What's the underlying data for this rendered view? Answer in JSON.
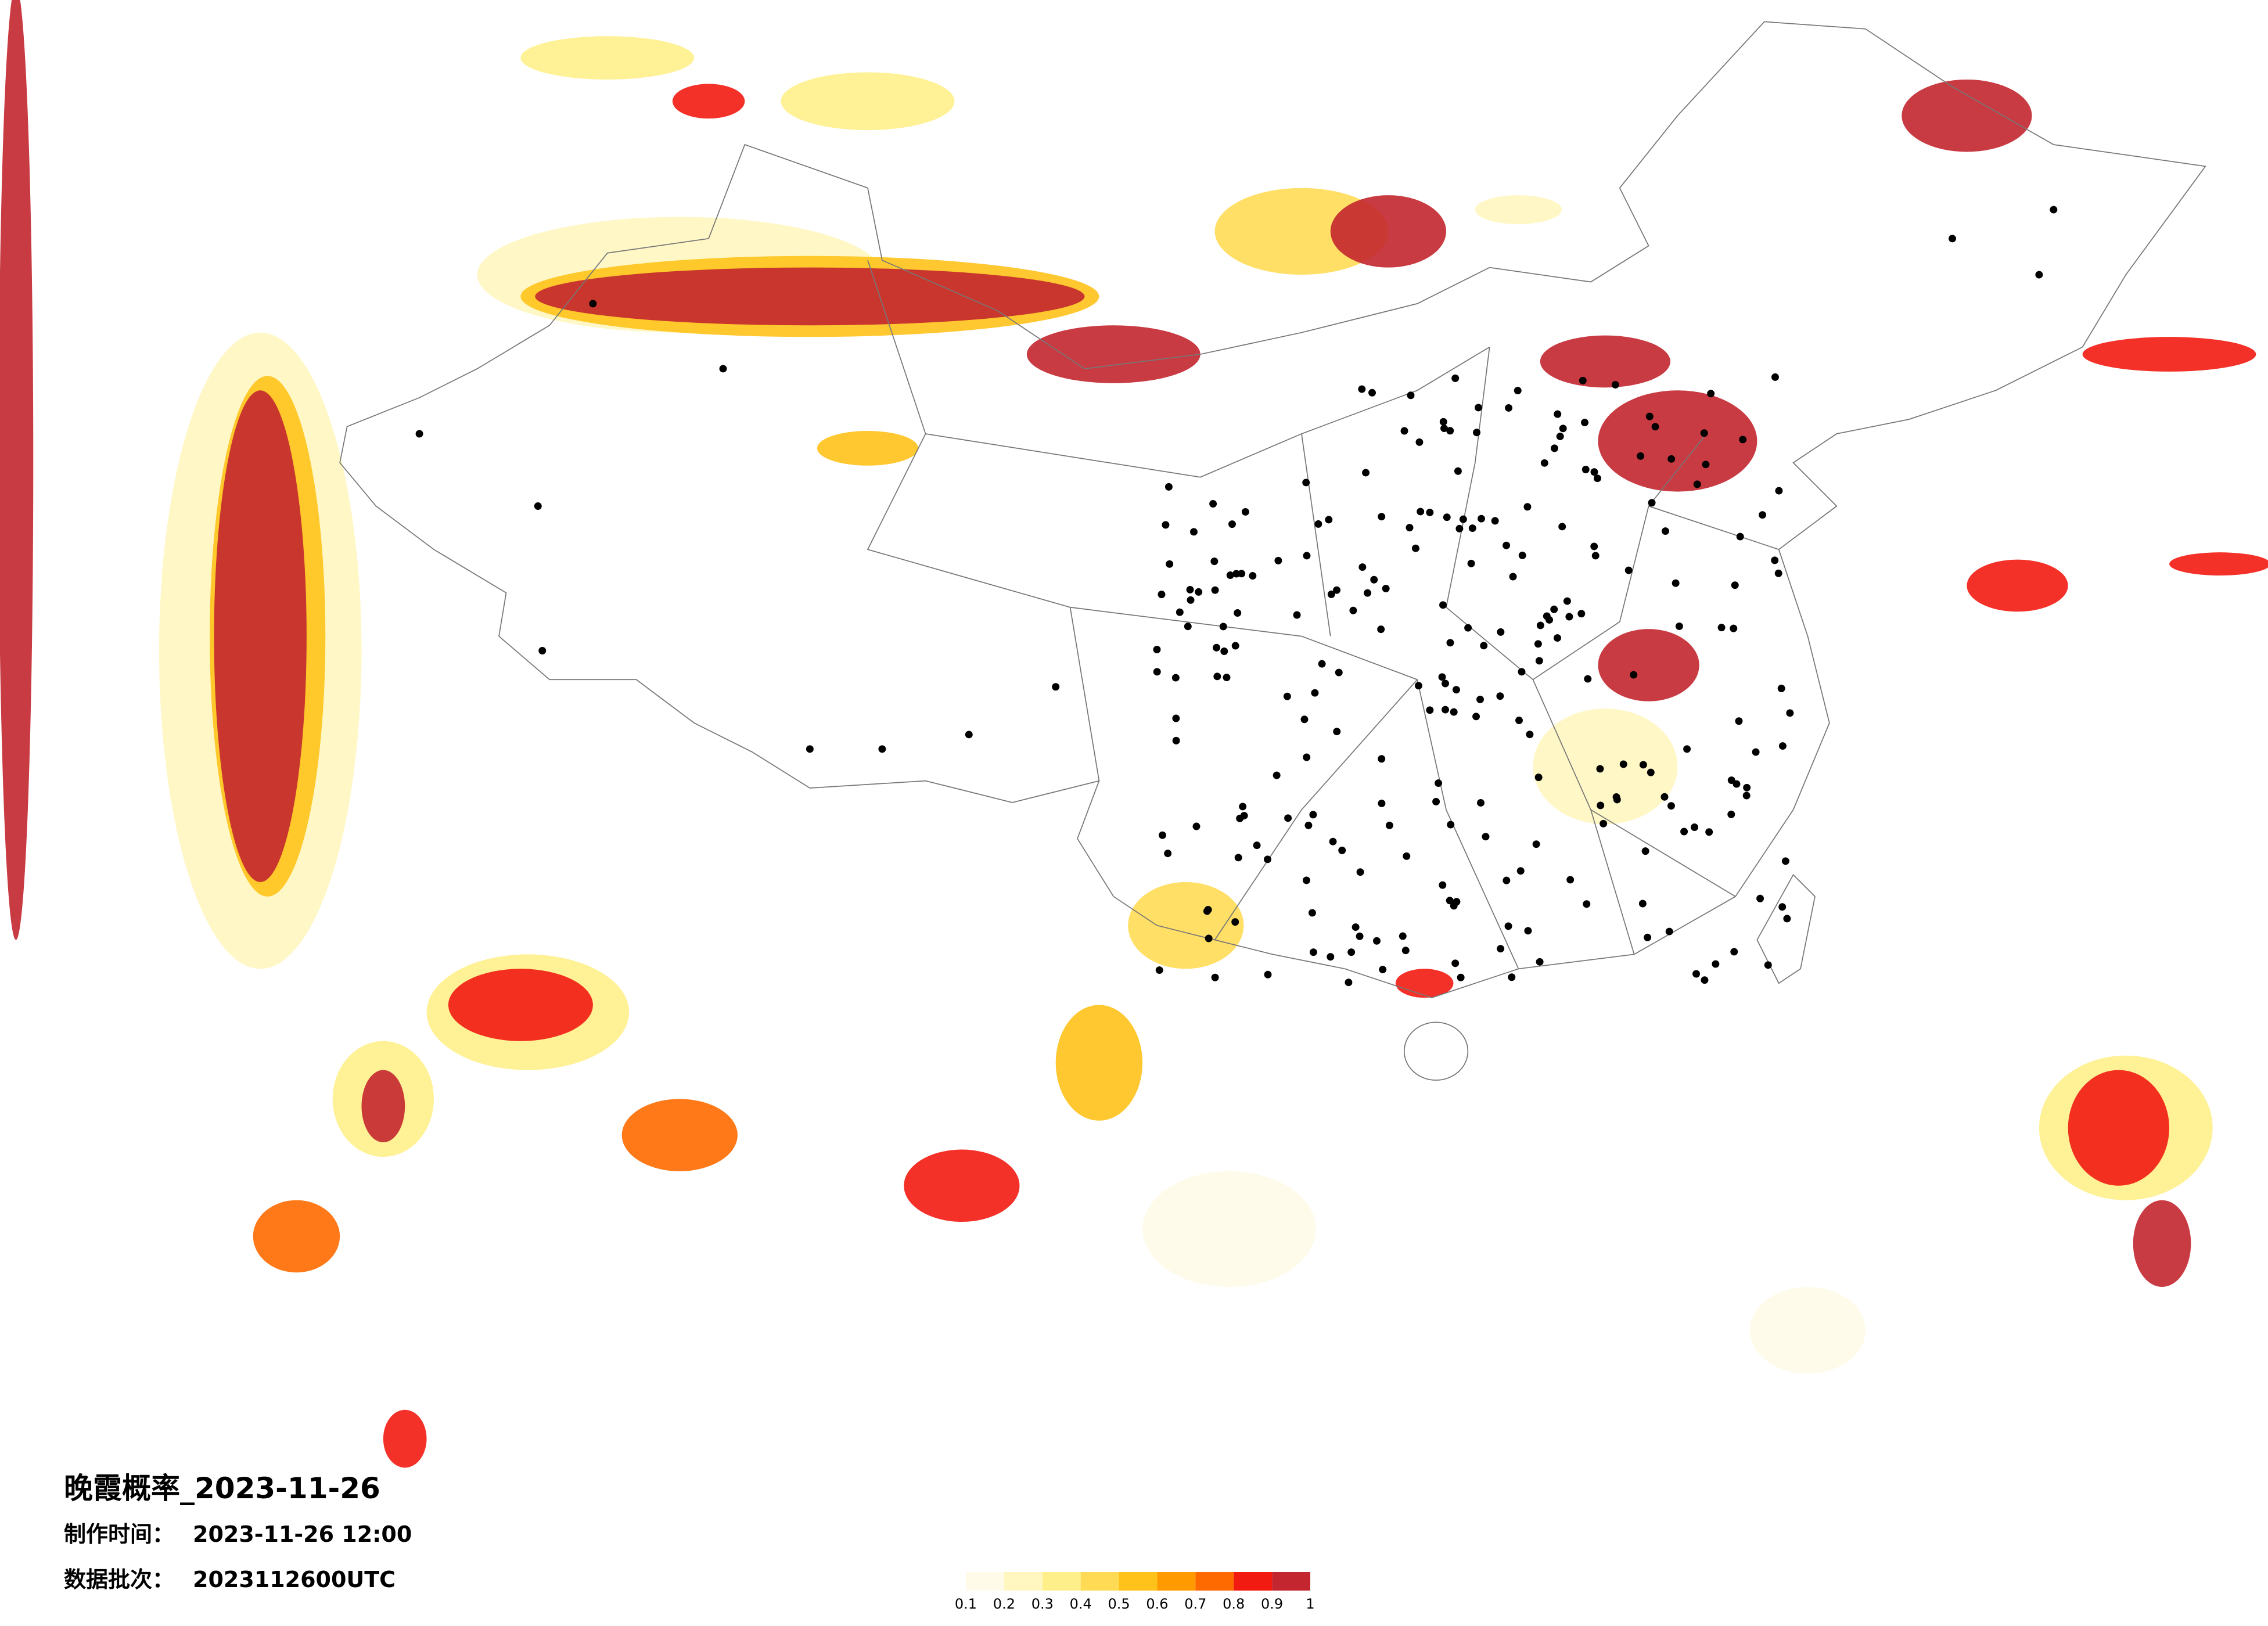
{
  "title": "晚霞概率_2023-11-26",
  "info": [
    {
      "label": "制作时间：",
      "value": "2023-11-26 12:00"
    },
    {
      "label": "数据批次：",
      "value": "2023112600UTC"
    }
  ],
  "colorbar": {
    "colors": [
      "#fffbe8",
      "#fff6c0",
      "#ffef8a",
      "#ffdb55",
      "#ffc21a",
      "#ff9a00",
      "#ff6a00",
      "#f21b12",
      "#c3262e"
    ],
    "ticks": [
      0.1,
      0.2,
      0.3,
      0.4,
      0.5,
      0.6,
      0.7,
      0.8,
      0.9,
      1
    ]
  }
}
